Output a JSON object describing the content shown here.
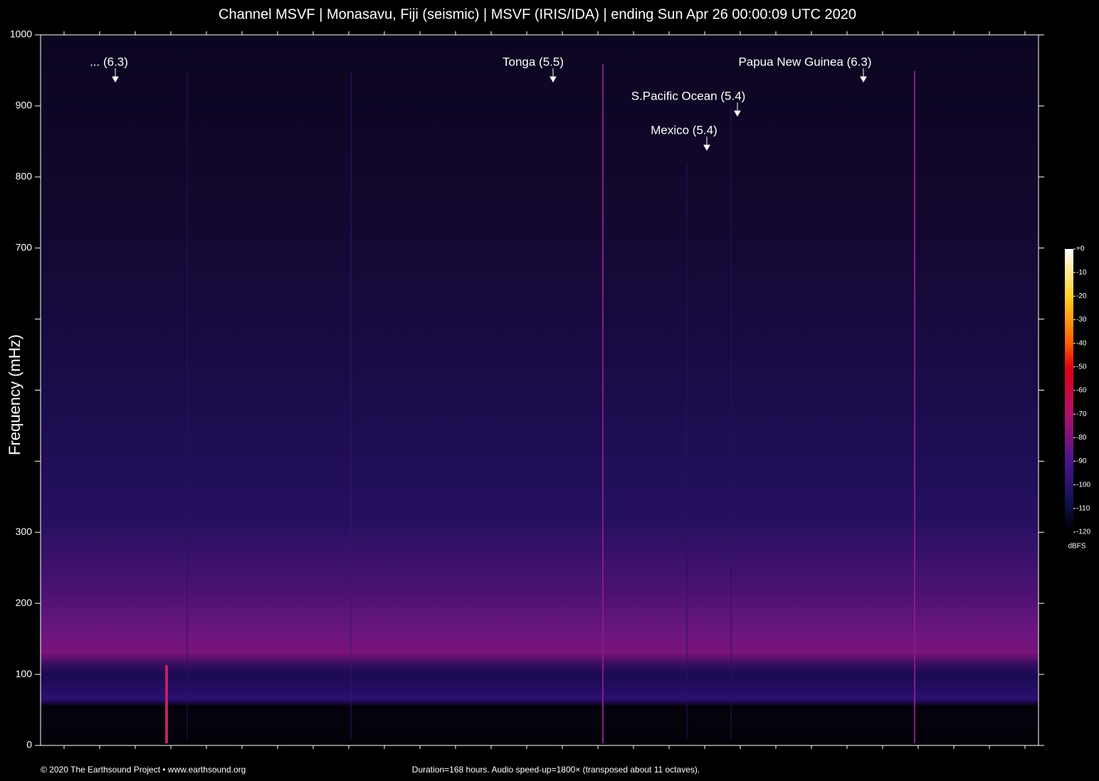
{
  "chart_data": {
    "type": "spectrogram",
    "title": "Channel MSVF | Monasavu, Fiji (seismic) | MSVF (IRIS/IDA) | ending Sun Apr 26 00:00:09 UTC 2020",
    "y_label": "Frequency (mHz)",
    "ylim": [
      0,
      1000
    ],
    "yticks": [
      0,
      100,
      200,
      300,
      {
        "value": 400,
        "label": null
      },
      {
        "value": 500,
        "label": null
      },
      {
        "value": 600,
        "label": null
      },
      700,
      800,
      900,
      1000
    ],
    "annotations": [
      "... (6.3)",
      "Tonga (5.5)",
      "Papua New Guinea (6.3)",
      "S.Pacific Ocean (5.4)",
      "Mexico (5.4)"
    ],
    "colorbar": {
      "label": "dBFS",
      "lim": [
        -120,
        0
      ],
      "ticks": [
        {
          "value": 0,
          "label": "+0"
        },
        -10,
        -20,
        -30,
        -40,
        -50,
        -60,
        -70,
        -80,
        -90,
        -100,
        -110,
        -120
      ]
    },
    "footer_left": "© 2020 The Earthsound Project • www.earthsound.org",
    "footer_right": "Duration=168 hours. Audio speed-up=1800× (transposed about 11 octaves)."
  }
}
